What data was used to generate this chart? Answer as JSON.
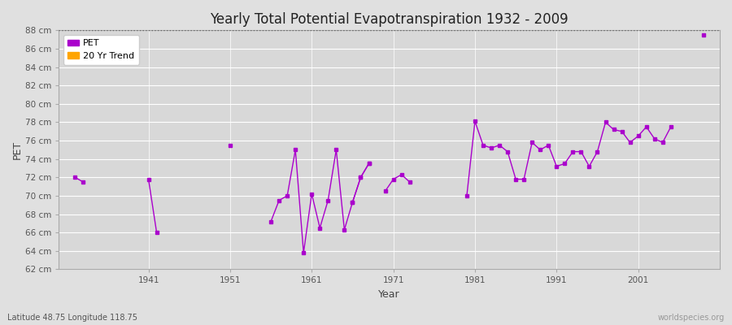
{
  "title": "Yearly Total Potential Evapotranspiration 1932 - 2009",
  "xlabel": "Year",
  "ylabel": "PET",
  "subtitle": "Latitude 48.75 Longitude 118.75",
  "watermark": "worldspecies.org",
  "ylim": [
    62,
    88
  ],
  "yticks": [
    62,
    64,
    66,
    68,
    70,
    72,
    74,
    76,
    78,
    80,
    82,
    84,
    86,
    88
  ],
  "ytick_labels": [
    "62 cm",
    "64 cm",
    "66 cm",
    "68 cm",
    "70 cm",
    "72 cm",
    "74 cm",
    "76 cm",
    "78 cm",
    "80 cm",
    "82 cm",
    "84 cm",
    "86 cm",
    "88 cm"
  ],
  "xticks": [
    1941,
    1951,
    1961,
    1971,
    1981,
    1991,
    2001
  ],
  "pet_color": "#AA00CC",
  "trend_color": "#FFA500",
  "bg_color": "#E0E0E0",
  "plot_bg_color": "#D8D8D8",
  "grid_color": "#FFFFFF",
  "years": [
    1932,
    1933,
    1941,
    1942,
    1951,
    1956,
    1957,
    1958,
    1959,
    1960,
    1961,
    1962,
    1963,
    1964,
    1965,
    1966,
    1967,
    1968,
    1970,
    1971,
    1972,
    1973,
    1980,
    1981,
    1982,
    1983,
    1984,
    1985,
    1986,
    1987,
    1988,
    1989,
    1990,
    1991,
    1992,
    1993,
    1994,
    1995,
    1996,
    1997,
    1998,
    1999,
    2000,
    2001,
    2002,
    2003,
    2004,
    2005,
    2009
  ],
  "segments": [
    {
      "years": [
        1932,
        1933
      ],
      "values": [
        72.0,
        71.5
      ]
    },
    {
      "years": [
        1941,
        1942
      ],
      "values": [
        71.8,
        66.0
      ]
    },
    {
      "years": [
        1951
      ],
      "values": [
        75.5
      ]
    },
    {
      "years": [
        1956,
        1957,
        1958,
        1959,
        1960,
        1961,
        1962,
        1963,
        1964,
        1965,
        1966,
        1967,
        1968
      ],
      "values": [
        67.2,
        69.5,
        70.0,
        75.0,
        63.8,
        70.2,
        66.5,
        69.5,
        75.0,
        66.3,
        69.3,
        72.0,
        73.5
      ]
    },
    {
      "years": [
        1966,
        1967,
        1968
      ],
      "values": [
        69.3,
        72.0,
        73.5
      ]
    },
    {
      "years": [
        1970,
        1971,
        1972,
        1973
      ],
      "values": [
        70.5,
        71.8,
        72.3,
        71.5
      ]
    },
    {
      "years": [
        1980,
        1981,
        1982,
        1983,
        1984,
        1985,
        1986,
        1987,
        1988,
        1989,
        1990,
        1991,
        1992,
        1993,
        1994,
        1995,
        1996,
        1997,
        1998,
        1999,
        2000,
        2001,
        2002,
        2003,
        2004,
        2005
      ],
      "values": [
        70.0,
        78.1,
        75.5,
        75.2,
        75.5,
        74.8,
        71.8,
        71.8,
        75.8,
        75.0,
        75.5,
        73.2,
        73.5,
        74.8,
        74.8,
        73.2,
        74.8,
        78.0,
        77.2,
        77.0,
        75.8,
        76.5,
        77.5,
        76.2,
        75.8,
        77.5
      ]
    },
    {
      "years": [
        2009
      ],
      "values": [
        87.5
      ]
    }
  ]
}
